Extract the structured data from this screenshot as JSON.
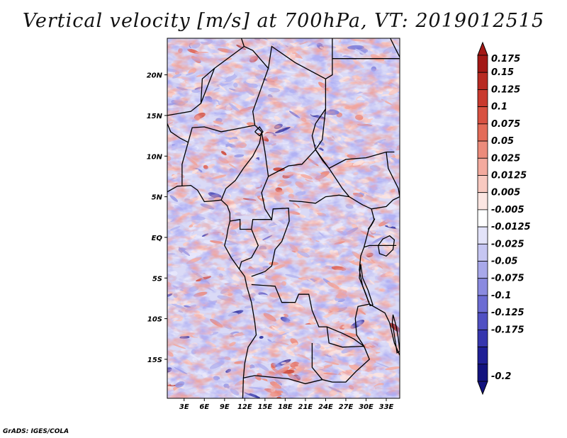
{
  "title": "Vertical velocity [m/s] at 700hPa, VT: 2019012515",
  "credit": "GrADS: IGES/COLA",
  "map": {
    "lat_labels": [
      "20N",
      "15N",
      "10N",
      "5N",
      "EQ",
      "5S",
      "10S",
      "15S"
    ],
    "lat_values": [
      20,
      15,
      10,
      5,
      0,
      -5,
      -10,
      -15
    ],
    "lon_labels": [
      "3E",
      "6E",
      "9E",
      "12E",
      "15E",
      "18E",
      "21E",
      "24E",
      "27E",
      "30E",
      "33E"
    ],
    "lon_values": [
      3,
      6,
      9,
      12,
      15,
      18,
      21,
      24,
      27,
      30,
      33
    ],
    "lon_range": [
      0.5,
      35
    ],
    "lat_range": [
      -19.8,
      24.5
    ],
    "colors": {
      "positive": [
        "#fde3de",
        "#fbc9c0",
        "#f6a99c",
        "#ee8674",
        "#e05c4a",
        "#cc3d2c",
        "#b72a20",
        "#9e1714"
      ],
      "negative": [
        "#e8e8fb",
        "#cfcff5",
        "#b4b4ee",
        "#9797e4",
        "#7878d8",
        "#5a5ac8",
        "#3f3fb2",
        "#252599"
      ],
      "border": "#000000"
    }
  },
  "colorbar": {
    "labels": [
      "0.175",
      "0.15",
      "0.125",
      "0.1",
      "0.075",
      "0.05",
      "0.025",
      "0.0125",
      "0.005",
      "-0.005",
      "-0.0125",
      "-0.025",
      "-0.05",
      "-0.075",
      "-0.1",
      "-0.125",
      "-0.175",
      "-0.2"
    ],
    "colors": [
      "#a31815",
      "#b82a22",
      "#c93a2e",
      "#d85141",
      "#e36b58",
      "#ec8b7b",
      "#f3aa9e",
      "#f8c9c0",
      "#fce6e2",
      "#ffffff",
      "#e3e3f9",
      "#c6c6f2",
      "#a8a8ea",
      "#8a8ae0",
      "#6c6cd3",
      "#5050c3",
      "#3636ae",
      "#1f1f96",
      "#12127e"
    ]
  }
}
